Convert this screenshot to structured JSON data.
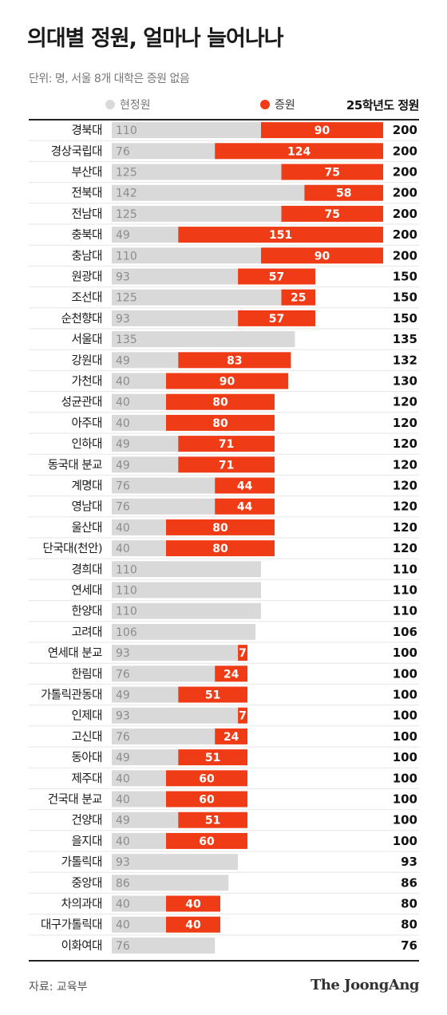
{
  "header": {
    "title": "의대별 정원, 얼마나 늘어나나",
    "subtitle": "단위: 명, 서울 8개 대학은 증원 없음"
  },
  "legend": {
    "current": "현정원",
    "increase": "증원",
    "total": "25학년도 정원"
  },
  "footer": {
    "source": "자료: 교육부",
    "brand": "The JoongAng"
  },
  "colors": {
    "current": "#d9d9d9",
    "increase": "#f03c16",
    "current_text": "#8c8c8c",
    "increase_text": "#ffffff"
  },
  "chart_data": {
    "type": "bar",
    "orientation": "horizontal",
    "stacked": true,
    "categories": [
      "경북대",
      "경상국립대",
      "부산대",
      "전북대",
      "전남대",
      "충북대",
      "충남대",
      "원광대",
      "조선대",
      "순천향대",
      "서울대",
      "강원대",
      "가천대",
      "성균관대",
      "아주대",
      "인하대",
      "동국대 분교",
      "계명대",
      "영남대",
      "울산대",
      "단국대(천안)",
      "경희대",
      "연세대",
      "한양대",
      "고려대",
      "연세대 분교",
      "한림대",
      "가톨릭관동대",
      "인제대",
      "고신대",
      "동아대",
      "제주대",
      "건국대 분교",
      "건양대",
      "을지대",
      "가톨릭대",
      "중앙대",
      "차의과대",
      "대구가톨릭대",
      "이화여대"
    ],
    "series": [
      {
        "name": "현정원",
        "values": [
          110,
          76,
          125,
          142,
          125,
          49,
          110,
          93,
          125,
          93,
          135,
          49,
          40,
          40,
          40,
          49,
          49,
          76,
          76,
          40,
          40,
          110,
          110,
          110,
          106,
          93,
          76,
          49,
          93,
          76,
          49,
          40,
          40,
          49,
          40,
          93,
          86,
          40,
          40,
          76
        ]
      },
      {
        "name": "증원",
        "values": [
          90,
          124,
          75,
          58,
          75,
          151,
          90,
          57,
          25,
          57,
          0,
          83,
          90,
          80,
          80,
          71,
          71,
          44,
          44,
          80,
          80,
          0,
          0,
          0,
          0,
          7,
          24,
          51,
          7,
          24,
          51,
          60,
          60,
          51,
          60,
          0,
          0,
          40,
          40,
          0
        ]
      }
    ],
    "totals": [
      200,
      200,
      200,
      200,
      200,
      200,
      200,
      150,
      150,
      150,
      135,
      132,
      130,
      120,
      120,
      120,
      120,
      120,
      120,
      120,
      120,
      110,
      110,
      110,
      106,
      100,
      100,
      100,
      100,
      100,
      100,
      100,
      100,
      100,
      100,
      93,
      86,
      80,
      80,
      76
    ],
    "xlim": [
      0,
      200
    ],
    "grid": false
  }
}
